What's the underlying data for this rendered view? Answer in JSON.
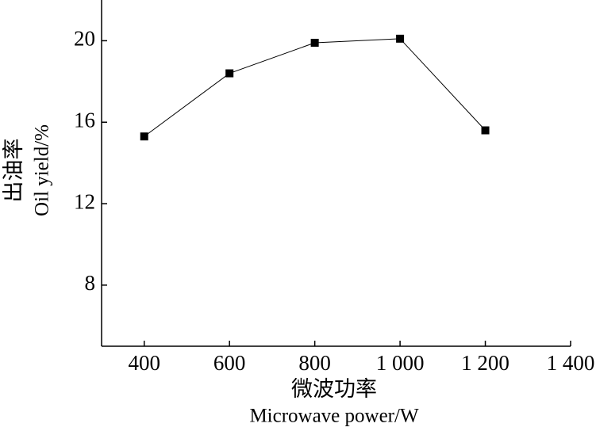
{
  "chart_data": {
    "type": "line",
    "xlabel": [
      "微波功率",
      "Microwave power/W"
    ],
    "ylabel": [
      "出油率",
      "Oil yield/%"
    ],
    "x": [
      400,
      600,
      800,
      1000,
      1200
    ],
    "values": [
      15.3,
      18.4,
      19.9,
      20.1,
      15.6
    ],
    "color": "#000000",
    "xlim": [
      300,
      1400
    ],
    "xticks": [
      400,
      600,
      800,
      {
        "value": 1000,
        "label": "1 000"
      },
      {
        "value": 1200,
        "label": "1 200"
      },
      {
        "value": 1400,
        "label": "1 400"
      }
    ],
    "ylim": [
      5,
      22
    ],
    "yticks": [
      8,
      12,
      16,
      20
    ],
    "grid": false
  }
}
